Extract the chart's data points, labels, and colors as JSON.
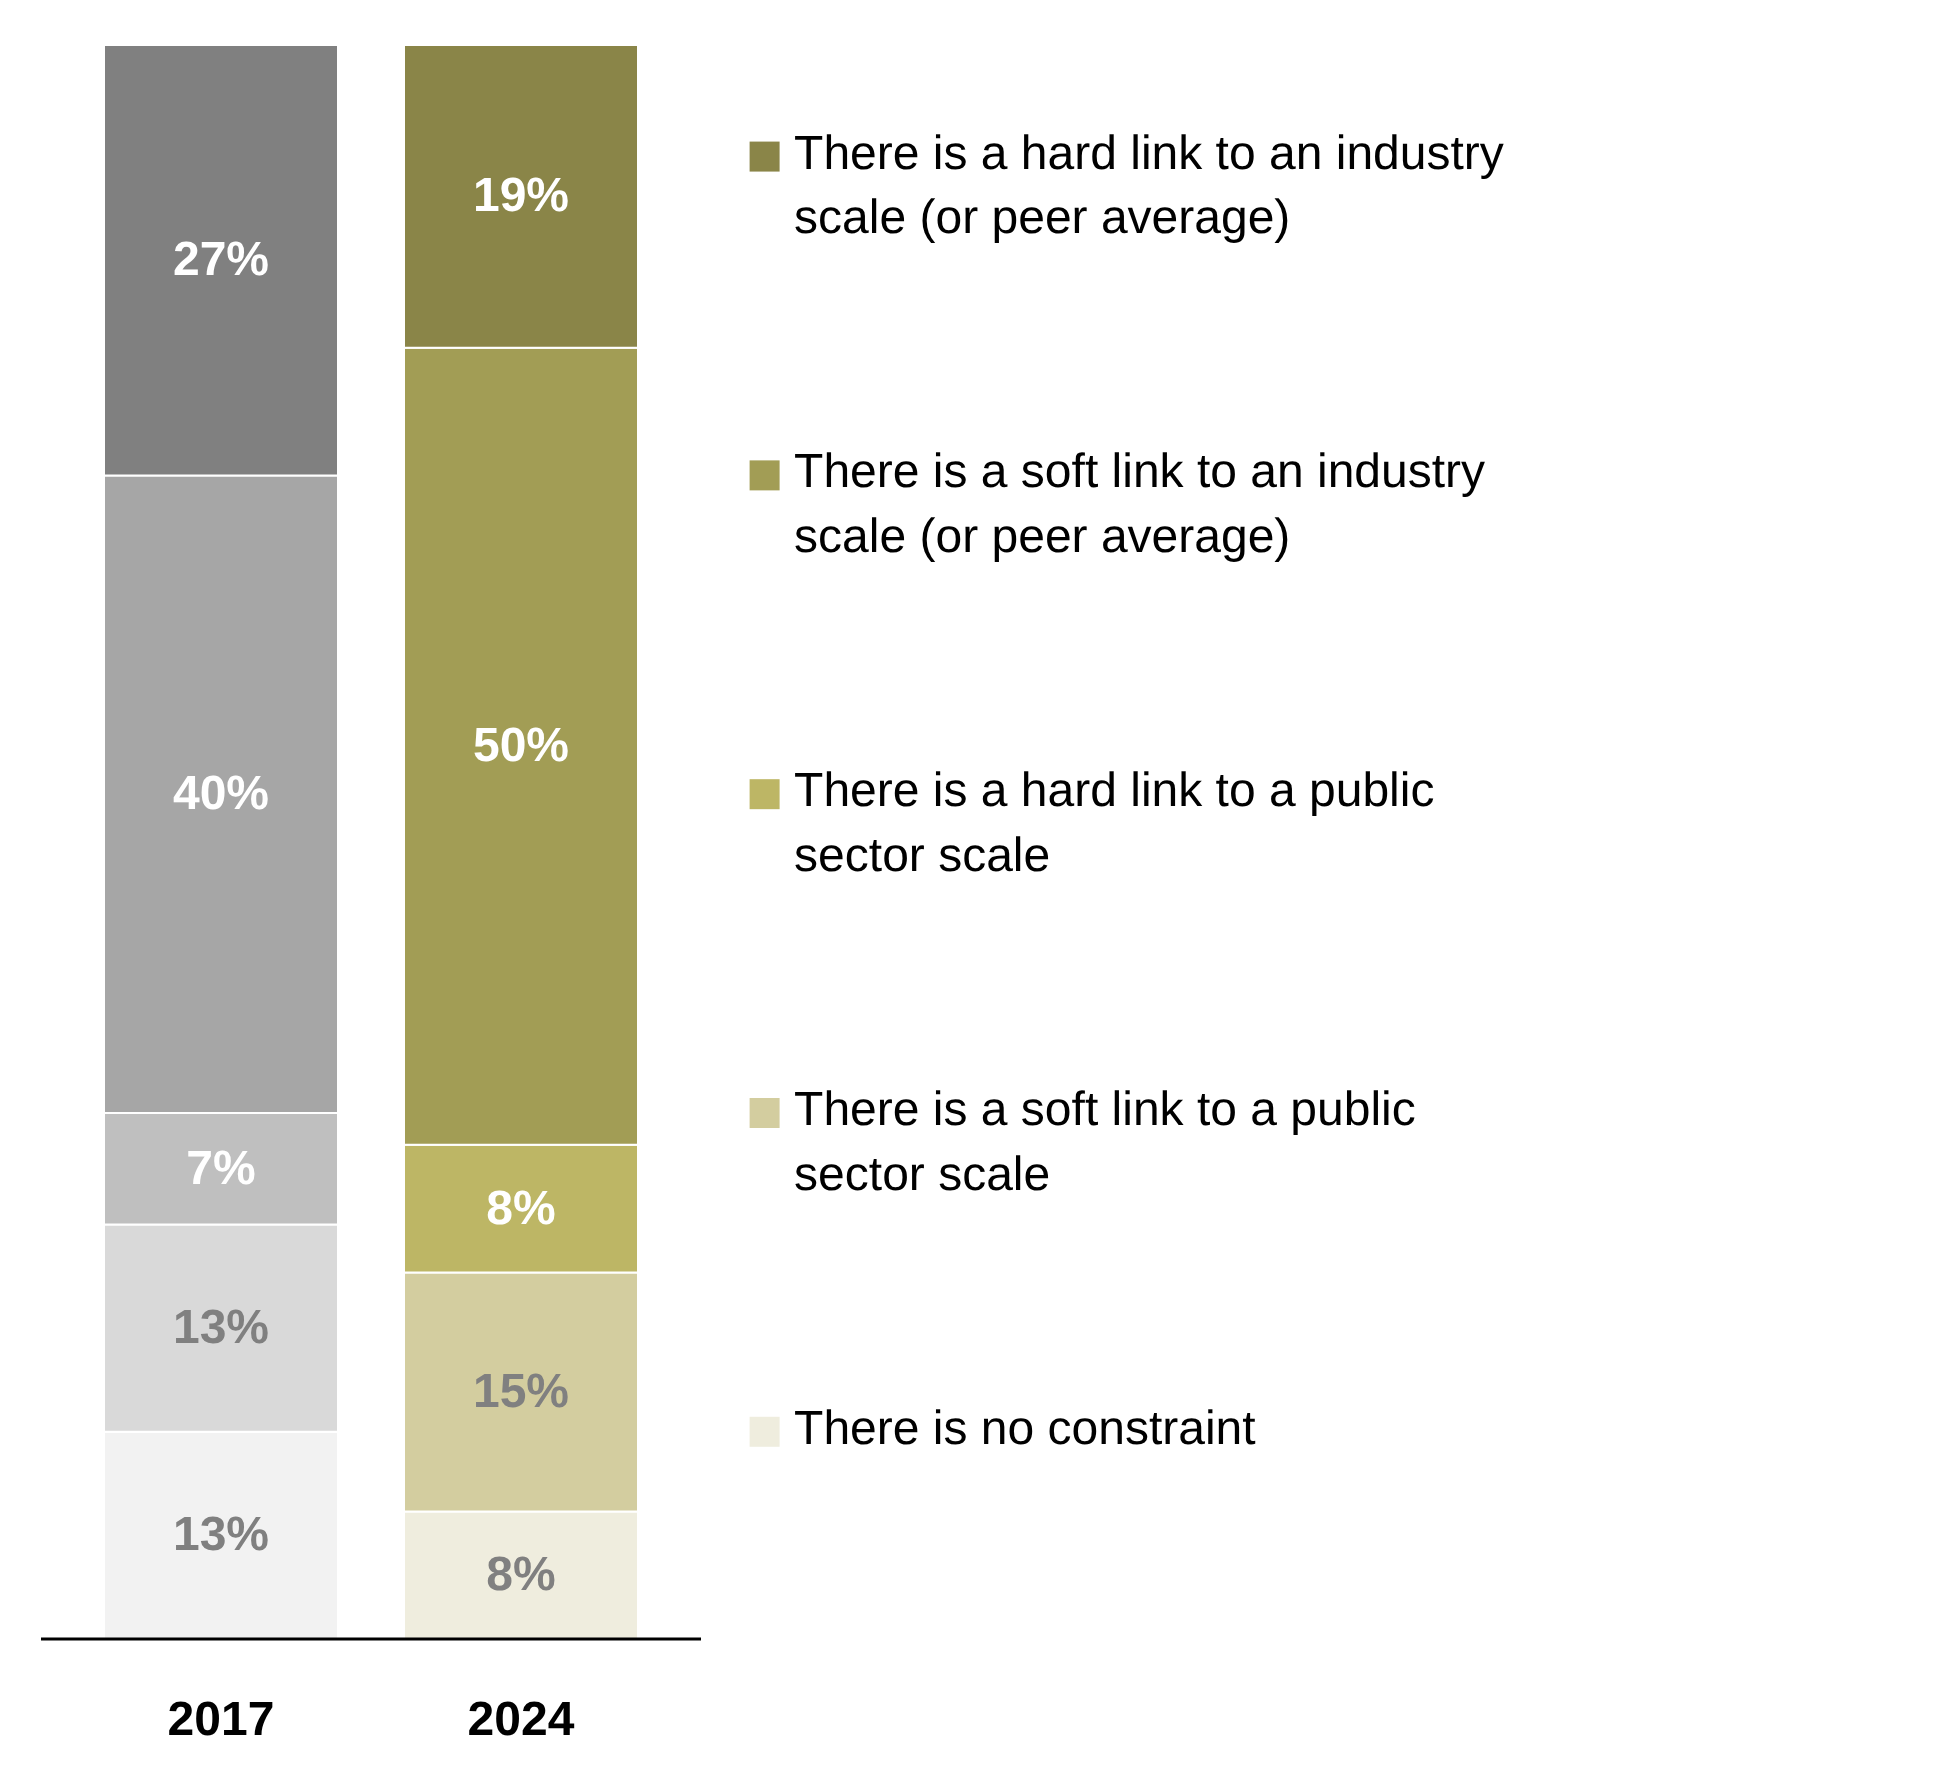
{
  "chart_data": {
    "type": "bar",
    "stacked": true,
    "categories": [
      "2017",
      "2024"
    ],
    "series": [
      {
        "name": "There is no constraint",
        "color": "#efedde",
        "colors": [
          "#f2f2f2",
          "#efedde"
        ],
        "values": [
          13,
          8
        ],
        "value_labels": [
          "13%",
          "8%"
        ]
      },
      {
        "name": "There is a soft link to a public sector scale",
        "color": "#d3cd9f",
        "colors": [
          "#d9d9d9",
          "#d3cd9f"
        ],
        "values": [
          13,
          15
        ],
        "value_labels": [
          "13%",
          "15%"
        ]
      },
      {
        "name": "There is a hard link to a public sector scale",
        "color": "#bdb665",
        "colors": [
          "#bfbfbf",
          "#bdb665"
        ],
        "values": [
          7,
          8
        ],
        "value_labels": [
          "7%",
          "8%"
        ]
      },
      {
        "name": "There is a soft link to an industry scale (or peer average)",
        "color": "#a29d55",
        "colors": [
          "#a6a6a6",
          "#a29d55"
        ],
        "values": [
          40,
          50
        ],
        "value_labels": [
          "40%",
          "50%"
        ]
      },
      {
        "name": "There is a hard link to an industry scale (or peer average)",
        "color": "#8a8548",
        "colors": [
          "#808080",
          "#8a8548"
        ],
        "values": [
          27,
          19
        ],
        "value_labels": [
          "27%",
          "19%"
        ]
      }
    ],
    "legend": "right"
  }
}
